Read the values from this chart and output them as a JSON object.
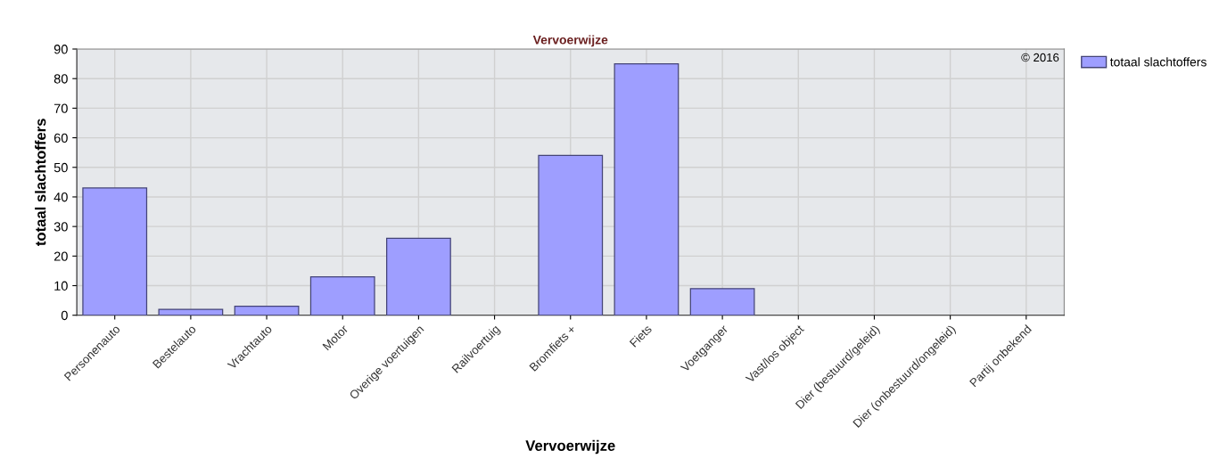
{
  "chart_data": {
    "type": "bar",
    "title": "Vervoerwijze",
    "xlabel": "Vervoerwijze",
    "ylabel": "totaal slachtoffers",
    "categories": [
      "Personenauto",
      "Bestelauto",
      "Vrachtauto",
      "Motor",
      "Overige voertuigen",
      "Railvoertuig",
      "Bromfiets +",
      "Fiets",
      "Voetganger",
      "Vast/los object",
      "Dier (bestuurd/geleid)",
      "Dier (onbestuurd/ongeleid)",
      "Partij onbekend"
    ],
    "series": [
      {
        "name": "totaal slachtoffers",
        "color": "#9e9eff",
        "values": [
          43,
          2,
          3,
          13,
          26,
          0,
          54,
          85,
          9,
          0,
          0,
          0,
          0
        ]
      }
    ],
    "ylim": [
      0,
      90
    ],
    "yticks": [
      0,
      10,
      20,
      30,
      40,
      50,
      60,
      70,
      80,
      90
    ],
    "grid": true,
    "legend": "top right",
    "annotations": [
      "© 2016"
    ]
  }
}
